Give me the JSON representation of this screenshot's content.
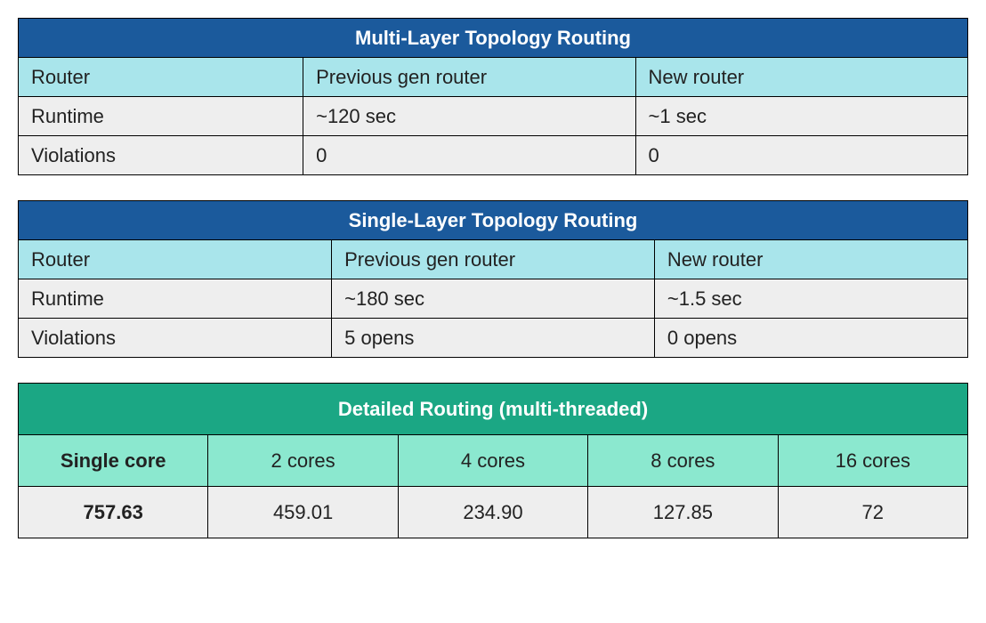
{
  "colors": {
    "blue_header": "#1b5a9c",
    "cyan_subhead": "#a9e5eb",
    "gray_row": "#eeeeee",
    "green_header": "#1ba784",
    "mint_row": "#8be8cf",
    "white": "#ffffff",
    "border": "#000000",
    "text": "#222222"
  },
  "table1": {
    "title": "Multi-Layer Topology Routing",
    "subhead": [
      "Router",
      "Previous gen router",
      "New router"
    ],
    "rows": [
      [
        "Runtime",
        "~120 sec",
        "~1 sec"
      ],
      [
        "Violations",
        "0",
        "0"
      ]
    ],
    "col_widths_pct": [
      30,
      35,
      35
    ]
  },
  "table2": {
    "title": "Single-Layer Topology Routing",
    "subhead": [
      "Router",
      "Previous gen router",
      "New router"
    ],
    "rows": [
      [
        "Runtime",
        "~180 sec",
        "~1.5 sec"
      ],
      [
        "Violations",
        "5 opens",
        "0 opens"
      ]
    ],
    "col_widths_pct": [
      33,
      34,
      33
    ]
  },
  "table3": {
    "title": "Detailed Routing (multi-threaded)",
    "subhead": [
      "Single core",
      "2 cores",
      "4 cores",
      "8 cores",
      "16 cores"
    ],
    "rows": [
      [
        "757.63",
        "459.01",
        "234.90",
        "127.85",
        "72"
      ]
    ],
    "col_widths_pct": [
      20,
      20,
      20,
      20,
      20
    ]
  }
}
